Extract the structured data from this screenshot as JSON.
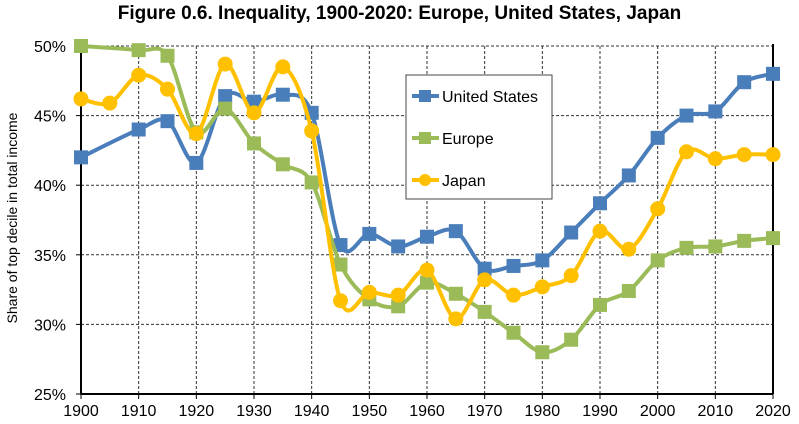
{
  "chart_data": {
    "type": "line",
    "title": "Figure 0.6. Inequality, 1900-2020: Europe, United States, Japan",
    "xlabel": "",
    "ylabel": "Share of top decile in total income",
    "x_ticks": [
      "1900",
      "1910",
      "1920",
      "1930",
      "1940",
      "1950",
      "1960",
      "1970",
      "1980",
      "1990",
      "2000",
      "2010",
      "2020"
    ],
    "y_ticks": [
      "25%",
      "30%",
      "35%",
      "40%",
      "45%",
      "50%"
    ],
    "xlim": [
      1900,
      2020
    ],
    "ylim": [
      25,
      50
    ],
    "grid": true,
    "legend_position": "top-center",
    "series": [
      {
        "name": "United States",
        "color": "#4a7ebb",
        "marker": "square",
        "x": [
          1900,
          1910,
          1915,
          1920,
          1925,
          1930,
          1935,
          1940,
          1945,
          1950,
          1955,
          1960,
          1965,
          1970,
          1975,
          1980,
          1985,
          1990,
          1995,
          2000,
          2005,
          2010,
          2015,
          2020
        ],
        "values": [
          42.0,
          44.0,
          44.6,
          41.6,
          46.4,
          46.0,
          46.5,
          45.2,
          35.7,
          36.5,
          35.6,
          36.3,
          36.7,
          34.0,
          34.2,
          34.6,
          36.6,
          38.7,
          40.7,
          43.4,
          45.0,
          45.3,
          47.4,
          48.0
        ]
      },
      {
        "name": "Europe",
        "color": "#9bbb59",
        "marker": "square",
        "x": [
          1900,
          1910,
          1915,
          1920,
          1925,
          1930,
          1935,
          1940,
          1945,
          1950,
          1955,
          1960,
          1965,
          1970,
          1975,
          1980,
          1985,
          1990,
          1995,
          2000,
          2005,
          2010,
          2015,
          2020
        ],
        "values": [
          50.0,
          49.7,
          49.3,
          43.8,
          45.5,
          43.0,
          41.5,
          40.2,
          34.3,
          31.8,
          31.3,
          33.0,
          32.2,
          30.9,
          29.4,
          28.0,
          28.9,
          31.4,
          32.4,
          34.6,
          35.5,
          35.6,
          36.0,
          36.2
        ]
      },
      {
        "name": "Japan",
        "color": "#ffc000",
        "marker": "circle",
        "x": [
          1900,
          1905,
          1910,
          1915,
          1920,
          1925,
          1930,
          1935,
          1940,
          1945,
          1950,
          1955,
          1960,
          1965,
          1970,
          1975,
          1980,
          1985,
          1990,
          1995,
          2000,
          2005,
          2010,
          2015,
          2020
        ],
        "values": [
          46.2,
          45.9,
          47.9,
          46.9,
          43.7,
          48.7,
          45.2,
          48.5,
          43.9,
          31.7,
          32.3,
          32.1,
          33.9,
          30.4,
          33.2,
          32.1,
          32.7,
          33.5,
          36.7,
          35.4,
          38.3,
          42.4,
          41.9,
          42.2,
          42.2
        ]
      }
    ]
  }
}
